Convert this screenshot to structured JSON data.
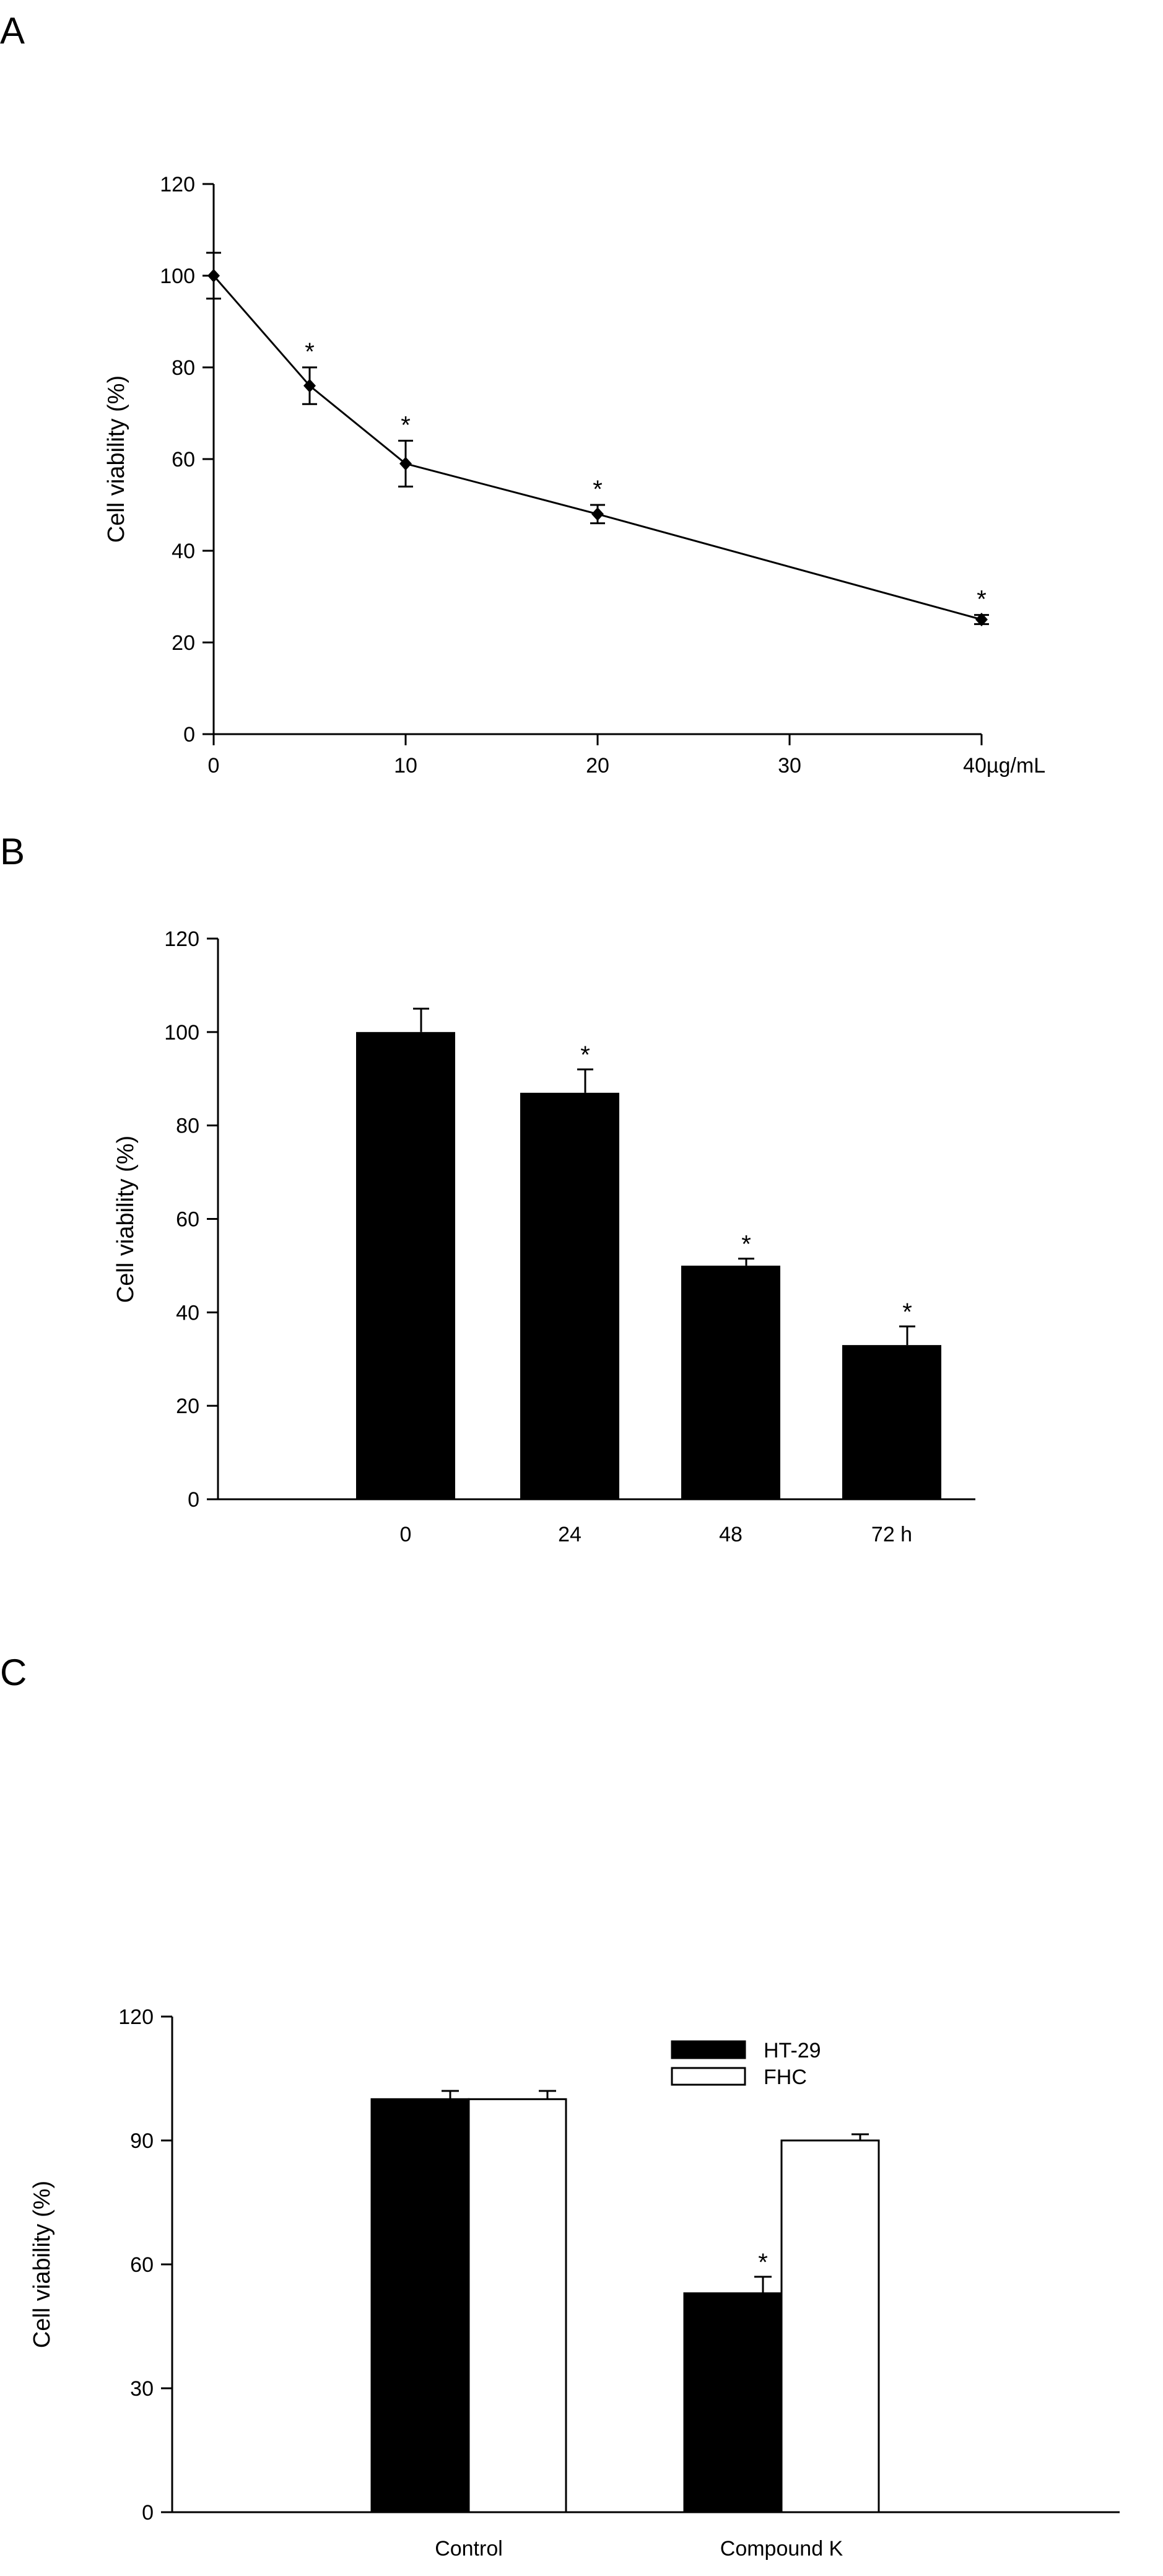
{
  "colors": {
    "ink": "#000000",
    "background": "#ffffff",
    "hollow": "#ffffff"
  },
  "chart_data": [
    {
      "panel": "A",
      "type": "line",
      "title": "",
      "ylabel": "Cell viability (%)",
      "xlabel": "",
      "x_unit": "µg/mL",
      "xlim": [
        0,
        40
      ],
      "ylim": [
        0,
        120
      ],
      "x_ticks": [
        0,
        10,
        20,
        30,
        40
      ],
      "y_ticks": [
        0,
        20,
        40,
        60,
        80,
        100,
        120
      ],
      "grid": false,
      "marker": "diamond",
      "series": [
        {
          "x": [
            0,
            5,
            10,
            20,
            40
          ],
          "values": [
            100,
            76,
            59,
            48,
            25
          ],
          "errors": [
            5,
            4,
            5,
            2,
            1
          ],
          "significance": [
            "",
            "*",
            "*",
            "*",
            "*"
          ]
        }
      ]
    },
    {
      "panel": "B",
      "type": "bar",
      "title": "",
      "ylabel": "Cell viability (%)",
      "xlabel": "",
      "ylim": [
        0,
        120
      ],
      "y_ticks": [
        0,
        20,
        40,
        60,
        80,
        100,
        120
      ],
      "grid": false,
      "categories": [
        "0",
        "24",
        "48",
        "72 h"
      ],
      "values": [
        100,
        87,
        50,
        33
      ],
      "errors": [
        5,
        5,
        1.5,
        4
      ],
      "significance": [
        "",
        "*",
        "*",
        "*"
      ]
    },
    {
      "panel": "C",
      "type": "bar",
      "title": "",
      "ylabel": "Cell viability (%)",
      "xlabel": "",
      "ylim": [
        0,
        120
      ],
      "y_ticks": [
        0,
        30,
        60,
        90,
        120
      ],
      "grid": false,
      "legend_position": "top-right",
      "categories": [
        "Control",
        "Compound K"
      ],
      "series": [
        {
          "name": "HT-29",
          "fill": "#000000",
          "values": [
            100,
            53
          ],
          "errors": [
            2,
            4
          ],
          "significance": [
            "",
            "*"
          ]
        },
        {
          "name": "FHC",
          "fill": "#ffffff",
          "values": [
            100,
            90
          ],
          "errors": [
            2,
            1.5
          ],
          "significance": [
            "",
            ""
          ]
        }
      ]
    }
  ]
}
